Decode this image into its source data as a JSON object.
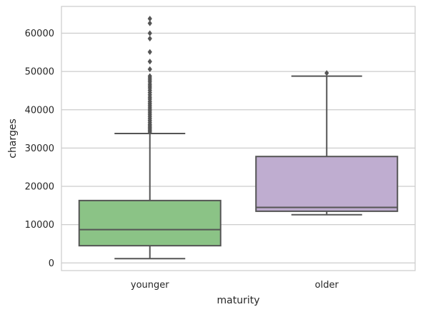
{
  "chart_data": {
    "type": "box",
    "xlabel": "maturity",
    "ylabel": "charges",
    "ylim": [
      -2000,
      67000
    ],
    "yticks": [
      0,
      10000,
      20000,
      30000,
      40000,
      50000,
      60000
    ],
    "grid": true,
    "categories": [
      "younger",
      "older"
    ],
    "boxes": [
      {
        "category": "younger",
        "color": "#8bc386",
        "whisker_low": 1122,
        "q1": 4500,
        "median": 8700,
        "q3": 16300,
        "whisker_high": 33800,
        "outliers": [
          34200,
          34600,
          35000,
          35400,
          35800,
          36200,
          36700,
          37200,
          37700,
          38200,
          38700,
          39200,
          39700,
          40200,
          40700,
          41200,
          41700,
          42200,
          42800,
          43300,
          43900,
          44500,
          45100,
          45700,
          46200,
          46700,
          47300,
          47800,
          48300,
          48800,
          50600,
          52600,
          55100,
          58600,
          60000,
          62600,
          63800
        ]
      },
      {
        "category": "older",
        "color": "#bfadd0",
        "whisker_low": 12600,
        "q1": 13500,
        "median": 14500,
        "q3": 27800,
        "whisker_high": 48800,
        "outliers": [
          49600
        ]
      }
    ],
    "colors": {
      "grid": "#cccccc",
      "frame": "#cccccc",
      "box_edge": "#555555"
    }
  }
}
